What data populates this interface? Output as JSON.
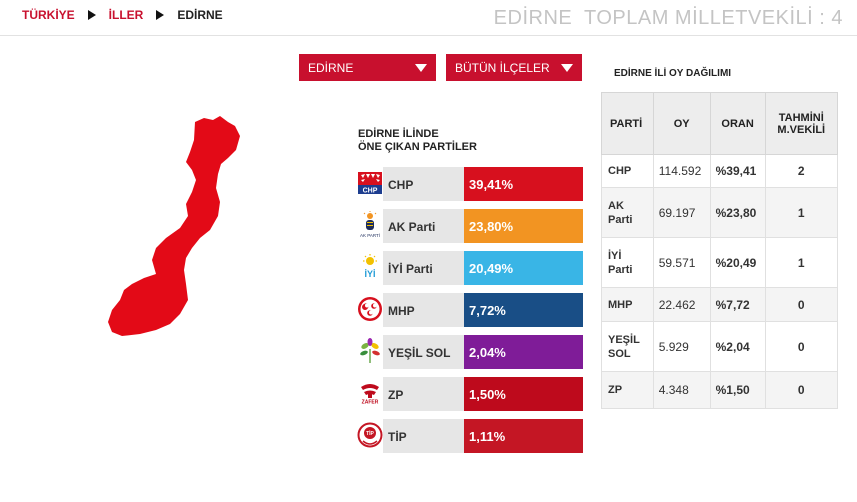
{
  "breadcrumb": {
    "items": [
      {
        "label": "TÜRKİYE",
        "link": true
      },
      {
        "label": "İLLER",
        "link": true
      },
      {
        "label": "EDİRNE",
        "link": false
      }
    ]
  },
  "page_heading": "EDİRNE  TOPLAM MİLLETVEKİLİ : 4",
  "filters": {
    "province": "EDİRNE",
    "district": "BÜTÜN İLÇELER"
  },
  "map": {
    "fill_color": "#e30a17"
  },
  "parties_section": {
    "title_line1": "EDİRNE İLİNDE",
    "title_line2": "ÖNE ÇIKAN PARTİLER",
    "parties": [
      {
        "name": "CHP",
        "percent": "39,41%",
        "color": "#d7101e",
        "logo": "chp-logo-icon"
      },
      {
        "name": "AK Parti",
        "percent": "23,80%",
        "color": "#f29422",
        "logo": "akparti-logo-icon"
      },
      {
        "name": "İYİ Parti",
        "percent": "20,49%",
        "color": "#39b5e6",
        "logo": "iyi-parti-logo-icon"
      },
      {
        "name": "MHP",
        "percent": "7,72%",
        "color": "#194e86",
        "logo": "mhp-logo-icon"
      },
      {
        "name": "YEŞİL SOL",
        "percent": "2,04%",
        "color": "#7f1c98",
        "logo": "yesil-sol-logo-icon"
      },
      {
        "name": "ZP",
        "percent": "1,50%",
        "color": "#be0a1c",
        "logo": "zafer-logo-icon"
      },
      {
        "name": "TİP",
        "percent": "1,11%",
        "color": "#c41624",
        "logo": "tip-logo-icon"
      }
    ]
  },
  "results_table": {
    "title": "EDİRNE İLİ OY DAĞILIMI",
    "headers": {
      "party": "PARTİ",
      "votes": "OY",
      "ratio": "ORAN",
      "seats_line1": "TAHMİNİ",
      "seats_line2": "M.VEKİLİ"
    },
    "rows": [
      {
        "party": "CHP",
        "votes": "114.592",
        "ratio": "%39,41",
        "seats": "2"
      },
      {
        "party": "AK Parti",
        "votes": "69.197",
        "ratio": "%23,80",
        "seats": "1"
      },
      {
        "party": "İYİ Parti",
        "votes": "59.571",
        "ratio": "%20,49",
        "seats": "1"
      },
      {
        "party": "MHP",
        "votes": "22.462",
        "ratio": "%7,72",
        "seats": "0"
      },
      {
        "party": "YEŞİL SOL",
        "votes": "5.929",
        "ratio": "%2,04",
        "seats": "0"
      },
      {
        "party": "ZP",
        "votes": "4.348",
        "ratio": "%1,50",
        "seats": "0"
      }
    ]
  }
}
